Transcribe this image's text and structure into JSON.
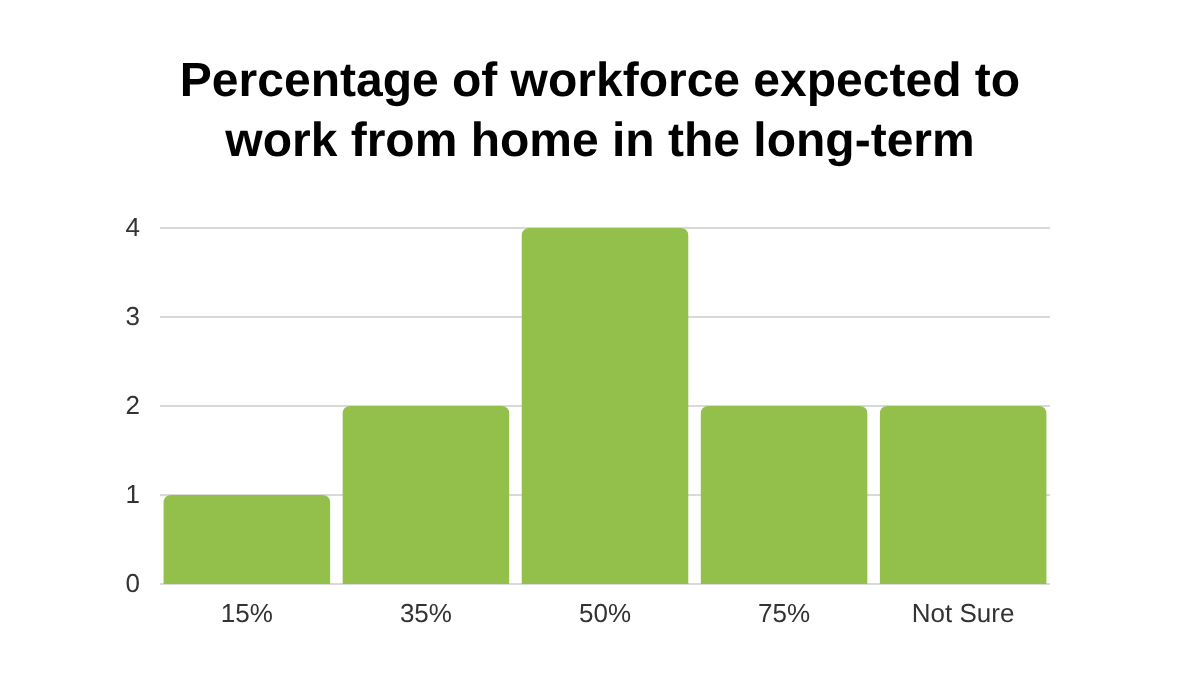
{
  "chart_data": {
    "type": "bar",
    "title": "Percentage of workforce expected to work from home in the long-term",
    "categories": [
      "15%",
      "35%",
      "50%",
      "75%",
      "Not Sure"
    ],
    "values": [
      1,
      2,
      4,
      2,
      2
    ],
    "color": "#92c04a",
    "ylim": [
      0,
      4
    ],
    "yticks": [
      0,
      1,
      2,
      3,
      4
    ],
    "grid": "y"
  }
}
